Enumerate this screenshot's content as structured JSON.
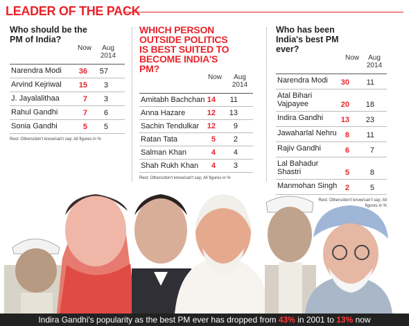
{
  "title": "LEADER OF THE PACK",
  "chart_data": [
    {
      "type": "table",
      "title": "Who should be the PM of India?",
      "columns": [
        "Now",
        "Aug 2014"
      ],
      "rows": [
        {
          "name": "Narendra Modi",
          "now": 36,
          "aug": 57
        },
        {
          "name": "Arvind Kejriwal",
          "now": 15,
          "aug": 3
        },
        {
          "name": "J. Jayalalithaa",
          "now": 7,
          "aug": 3
        },
        {
          "name": "Rahul Gandhi",
          "now": 7,
          "aug": 6
        },
        {
          "name": "Sonia Gandhi",
          "now": 5,
          "aug": 5
        }
      ],
      "note": "Rest: Others/don't know/can't say; All figures in %"
    },
    {
      "type": "table",
      "title": "WHICH PERSON OUTSIDE POLITICS IS BEST SUITED TO BECOME INDIA'S PM?",
      "columns": [
        "Now",
        "Aug 2014"
      ],
      "rows": [
        {
          "name": "Amitabh Bachchan",
          "now": 14,
          "aug": 11
        },
        {
          "name": "Anna Hazare",
          "now": 12,
          "aug": 13
        },
        {
          "name": "Sachin Tendulkar",
          "now": 12,
          "aug": 9
        },
        {
          "name": "Ratan Tata",
          "now": 5,
          "aug": 2
        },
        {
          "name": "Salman Khan",
          "now": 4,
          "aug": 4
        },
        {
          "name": "Shah Rukh Khan",
          "now": 4,
          "aug": 3
        }
      ],
      "note": "Rest: Others/don't know/can't say; All figures in %"
    },
    {
      "type": "table",
      "title": "Who has been India's best PM ever?",
      "columns": [
        "Now",
        "Aug 2014"
      ],
      "rows": [
        {
          "name": "Narendra Modi",
          "now": 30,
          "aug": 11
        },
        {
          "name": "Atal Bihari Vajpayee",
          "now": 20,
          "aug": 18
        },
        {
          "name": "Indira Gandhi",
          "now": 13,
          "aug": 23
        },
        {
          "name": "Jawaharlal Nehru",
          "now": 8,
          "aug": 11
        },
        {
          "name": "Rajiv Gandhi",
          "now": 6,
          "aug": 7
        },
        {
          "name": "Lal Bahadur Shastri",
          "now": 5,
          "aug": 8
        },
        {
          "name": "Manmohan Singh",
          "now": 2,
          "aug": 5
        }
      ],
      "note": "Rest: Others/don't know/can't say; All figures in %"
    }
  ],
  "footer": {
    "pre": "Indira Gandhi's popularity as the best PM ever has dropped from ",
    "v1": "43%",
    "mid": " in 2001 to ",
    "v2": "13%",
    "post": " now"
  },
  "colors": {
    "accent": "#e8232a",
    "footer_bg": "#222222",
    "skin": "#e9b59a",
    "dark": "#3a3a3a"
  },
  "photo_icons": [
    "lal-bahadur-shastri-portrait",
    "indira-gandhi-portrait",
    "rajiv-gandhi-portrait",
    "narendra-modi-portrait",
    "jawaharlal-nehru-portrait",
    "manmohan-singh-portrait"
  ]
}
